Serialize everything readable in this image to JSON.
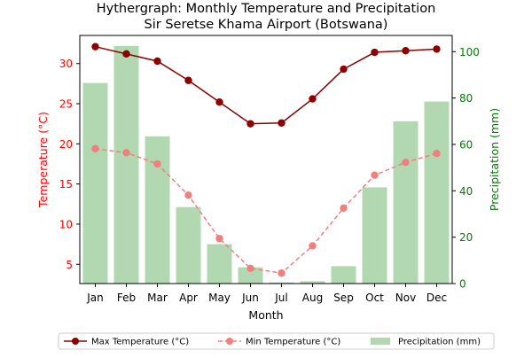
{
  "chart_data": {
    "type": "bar+line",
    "title_line1": "Hythergraph: Monthly Temperature and Precipitation",
    "title_line2": "Sir Seretse Khama Airport (Botswana)",
    "xlabel": "Month",
    "ylabel_left": "Temperature (°C)",
    "ylabel_right": "Precipitation (mm)",
    "categories": [
      "Jan",
      "Feb",
      "Mar",
      "Apr",
      "May",
      "Jun",
      "Jul",
      "Aug",
      "Sep",
      "Oct",
      "Nov",
      "Dec"
    ],
    "left_axis": {
      "min": 2.6,
      "max": 33.5,
      "ticks": [
        5,
        10,
        15,
        20,
        25,
        30
      ]
    },
    "right_axis": {
      "min": 0,
      "max": 107,
      "ticks": [
        0,
        20,
        40,
        60,
        80,
        100
      ]
    },
    "series": [
      {
        "name": "Max Temperature (°C)",
        "kind": "line",
        "axis": "left",
        "color": "#8b0000",
        "dash": false,
        "values": [
          32.1,
          31.2,
          30.3,
          27.9,
          25.2,
          22.5,
          22.6,
          25.6,
          29.3,
          31.4,
          31.6,
          31.8
        ]
      },
      {
        "name": "Min Temperature (°C)",
        "kind": "line",
        "axis": "left",
        "color": "#f08080",
        "dash": true,
        "values": [
          19.4,
          18.9,
          17.5,
          13.6,
          8.2,
          4.5,
          3.9,
          7.3,
          12.0,
          16.1,
          17.7,
          18.8
        ]
      },
      {
        "name": "Precipitation (mm)",
        "kind": "bar",
        "axis": "right",
        "color": "#b2d8b2",
        "values": [
          86.5,
          102.5,
          63.5,
          33,
          17,
          7,
          0.5,
          1,
          7.5,
          41.5,
          70,
          78.5
        ]
      }
    ],
    "legend_position": "bottom",
    "grid": false,
    "colors": {
      "left_axis": "#ff0000",
      "right_axis": "#008000"
    }
  }
}
